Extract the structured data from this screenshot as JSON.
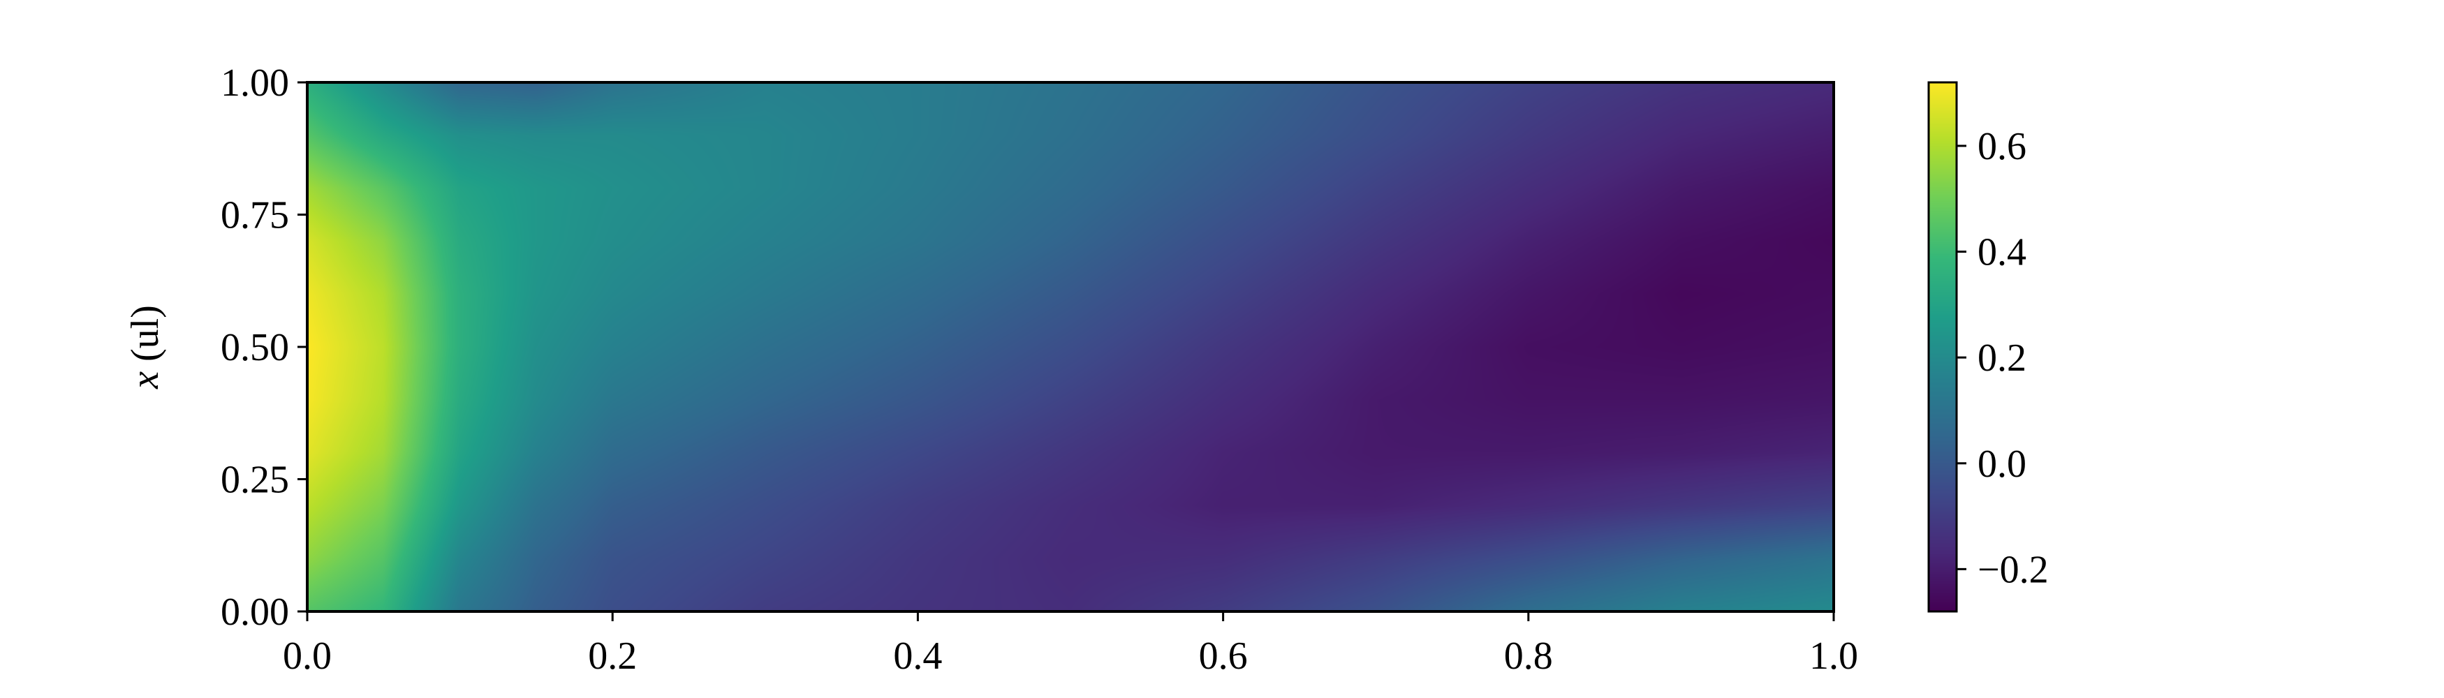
{
  "chart_data": {
    "type": "heatmap",
    "title": "",
    "xlabel": "",
    "ylabel": {
      "var": "x",
      "unit": " (ul)"
    },
    "xlim": [
      0.0,
      1.0
    ],
    "ylim": [
      0.0,
      1.0
    ],
    "x_ticks": [
      "0.0",
      "0.2",
      "0.4",
      "0.6",
      "0.8",
      "1.0"
    ],
    "y_ticks": [
      "0.00",
      "0.25",
      "0.50",
      "0.75",
      "1.00"
    ],
    "colormap": "viridis",
    "color_range": [
      -0.28,
      0.72
    ],
    "colorbar_ticks": [
      {
        "value": -0.2,
        "label": "−0.2"
      },
      {
        "value": 0.0,
        "label": "0.0"
      },
      {
        "value": 0.2,
        "label": "0.2"
      },
      {
        "value": 0.4,
        "label": "0.4"
      },
      {
        "value": 0.6,
        "label": "0.6"
      }
    ],
    "grid": false,
    "x_values": [
      0.0,
      0.05,
      0.1,
      0.15,
      0.2,
      0.3,
      0.4,
      0.5,
      0.6,
      0.7,
      0.8,
      0.9,
      1.0
    ],
    "y_values": [
      0.0,
      0.1,
      0.2,
      0.3,
      0.4,
      0.5,
      0.6,
      0.7,
      0.8,
      0.9,
      1.0
    ],
    "z": [
      [
        0.45,
        0.38,
        0.12,
        0.02,
        -0.04,
        -0.1,
        -0.13,
        -0.15,
        -0.1,
        -0.03,
        0.08,
        0.16,
        0.2
      ],
      [
        0.55,
        0.45,
        0.18,
        0.05,
        -0.02,
        -0.07,
        -0.12,
        -0.16,
        -0.15,
        -0.1,
        -0.04,
        0.04,
        0.1
      ],
      [
        0.62,
        0.52,
        0.25,
        0.1,
        0.02,
        -0.04,
        -0.1,
        -0.15,
        -0.19,
        -0.19,
        -0.16,
        -0.12,
        -0.08
      ],
      [
        0.68,
        0.58,
        0.3,
        0.16,
        0.07,
        0.0,
        -0.06,
        -0.12,
        -0.18,
        -0.21,
        -0.21,
        -0.2,
        -0.18
      ],
      [
        0.71,
        0.61,
        0.33,
        0.2,
        0.12,
        0.05,
        -0.01,
        -0.08,
        -0.15,
        -0.21,
        -0.23,
        -0.23,
        -0.22
      ],
      [
        0.72,
        0.62,
        0.35,
        0.22,
        0.16,
        0.09,
        0.03,
        -0.04,
        -0.12,
        -0.19,
        -0.24,
        -0.25,
        -0.24
      ],
      [
        0.7,
        0.6,
        0.35,
        0.24,
        0.19,
        0.13,
        0.07,
        0.0,
        -0.08,
        -0.16,
        -0.22,
        -0.26,
        -0.25
      ],
      [
        0.66,
        0.55,
        0.33,
        0.25,
        0.21,
        0.16,
        0.11,
        0.04,
        -0.04,
        -0.12,
        -0.19,
        -0.24,
        -0.26
      ],
      [
        0.58,
        0.46,
        0.3,
        0.25,
        0.22,
        0.18,
        0.13,
        0.07,
        0.0,
        -0.08,
        -0.15,
        -0.21,
        -0.24
      ],
      [
        0.45,
        0.32,
        0.22,
        0.2,
        0.2,
        0.18,
        0.14,
        0.09,
        0.03,
        -0.04,
        -0.11,
        -0.17,
        -0.2
      ],
      [
        0.35,
        0.2,
        0.05,
        0.03,
        0.1,
        0.16,
        0.14,
        0.1,
        0.05,
        -0.02,
        -0.08,
        -0.13,
        -0.16
      ]
    ]
  }
}
